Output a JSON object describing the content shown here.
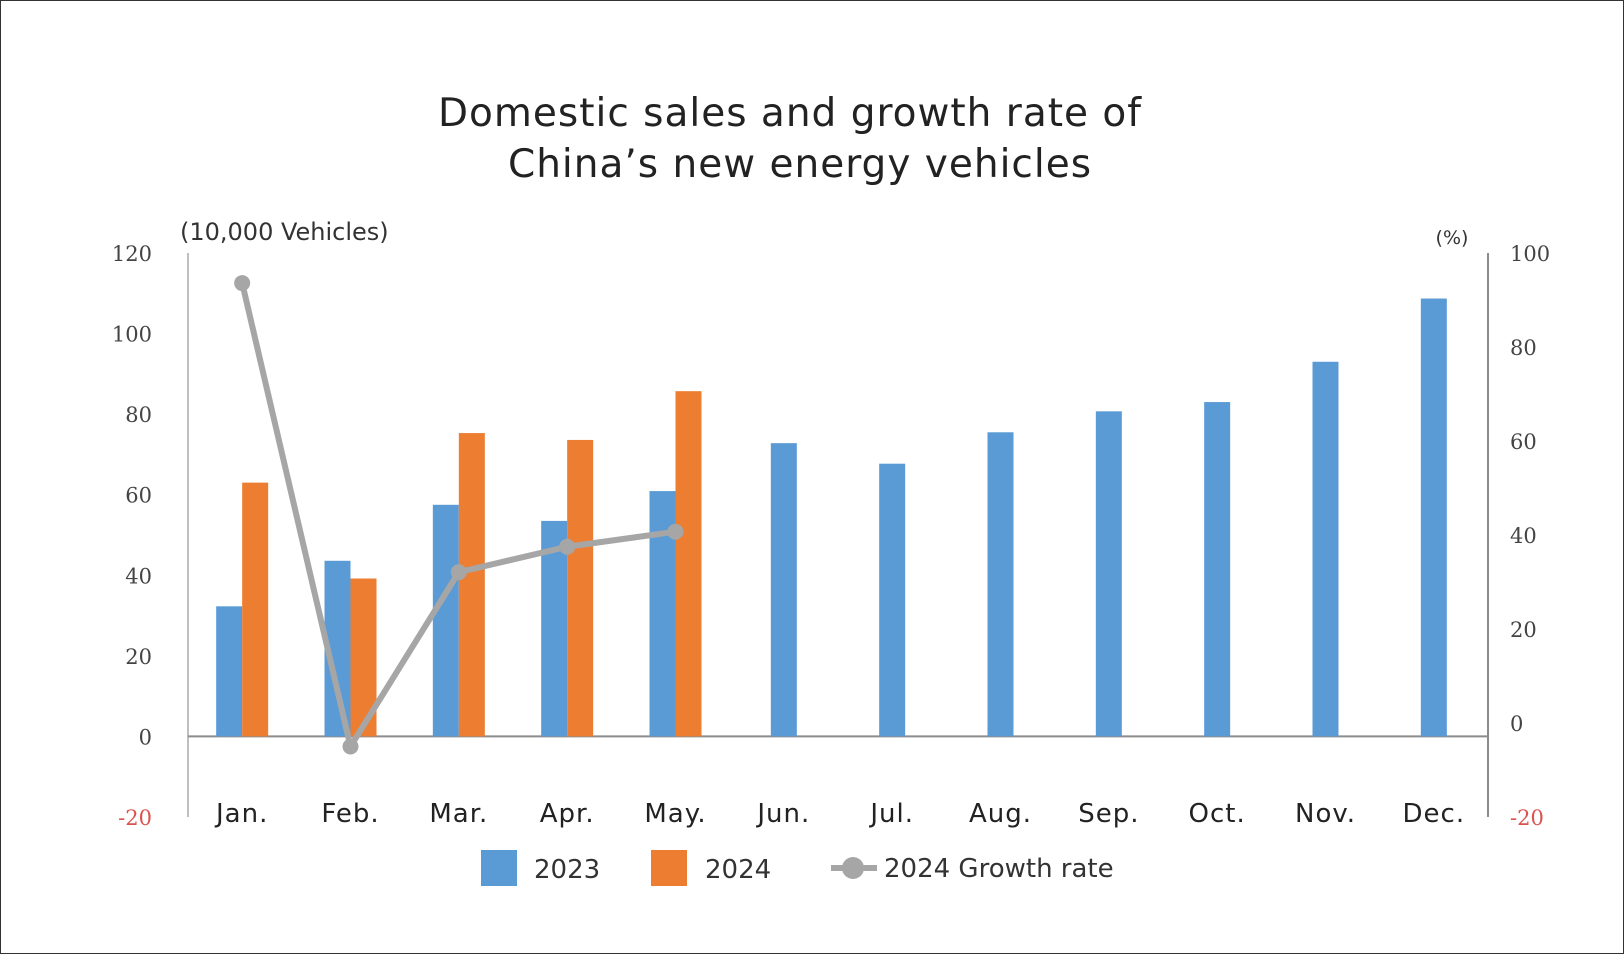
{
  "chart_data": {
    "type": "bar",
    "title_line1": "Domestic sales and growth rate of",
    "title_line2": "China’s new energy vehicles",
    "ylabel_left": "(10,000 Vehicles)",
    "ylabel_right": "(%)",
    "categories": [
      "Jan.",
      "Feb.",
      "Mar.",
      "Apr.",
      "May.",
      "Jun.",
      "Jul.",
      "Aug.",
      "Sep.",
      "Oct.",
      "Nov.",
      "Dec."
    ],
    "ylim_left": [
      -20,
      120
    ],
    "yticks_left": [
      "-20",
      "0",
      "20",
      "40",
      "60",
      "80",
      "100",
      "120"
    ],
    "ylim_right": [
      -20,
      100
    ],
    "yticks_right": [
      "-20",
      "0",
      "20",
      "40",
      "60",
      "80",
      "100"
    ],
    "series": [
      {
        "name": "2023",
        "type": "bar",
        "axis": "left",
        "color": "#5b9bd5",
        "values": [
          32.3,
          43.6,
          57.5,
          53.5,
          60.9,
          72.8,
          67.7,
          75.5,
          80.7,
          83.0,
          93.0,
          108.7
        ]
      },
      {
        "name": "2024",
        "type": "bar",
        "axis": "left",
        "color": "#ed7d31",
        "values": [
          63.0,
          39.2,
          75.3,
          73.6,
          85.7,
          null,
          null,
          null,
          null,
          null,
          null,
          null
        ]
      },
      {
        "name": "2024 Growth rate",
        "type": "line",
        "axis": "right",
        "color": "#a6a6a6",
        "values": [
          93.6,
          -5.0,
          32.1,
          37.5,
          40.7,
          null,
          null,
          null,
          null,
          null,
          null,
          null
        ]
      }
    ],
    "legend": [
      "2023",
      "2024",
      "2024 Growth rate"
    ],
    "legend_position": "bottom"
  }
}
